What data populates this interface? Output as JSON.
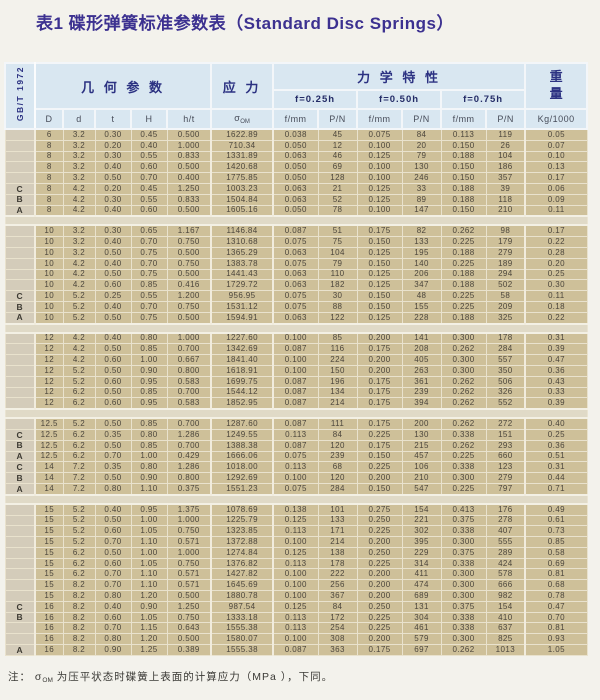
{
  "title": "表1 碟形弹簧标准参数表（Standard Disc Springs）",
  "standard_label": "GB/T 1972",
  "header": {
    "geometry": "几 何 参 数",
    "stress": "应 力",
    "mechanical": "力 学 特 性",
    "weight_top": "重",
    "weight_bottom": "量",
    "deflections": [
      "f=0.25h",
      "f=0.50h",
      "f=0.75h"
    ],
    "geo_cols": [
      "D",
      "d",
      "t",
      "H",
      "h/t"
    ],
    "sigma": "σ",
    "sigma_sub": "OM",
    "mech_cols": [
      "f/mm",
      "P/N",
      "f/mm",
      "P/N",
      "f/mm",
      "P/N"
    ],
    "weight_unit": "Kg/1000"
  },
  "table": {
    "blocks": [
      {
        "rows": [
          [
            "",
            "6",
            "3.2",
            "0.30",
            "0.45",
            "0.500",
            "1622.89",
            "0.038",
            "45",
            "0.075",
            "84",
            "0.113",
            "119",
            "0.05"
          ],
          [
            "",
            "8",
            "3.2",
            "0.20",
            "0.40",
            "1.000",
            "710.34",
            "0.050",
            "12",
            "0.100",
            "20",
            "0.150",
            "26",
            "0.07"
          ],
          [
            "",
            "8",
            "3.2",
            "0.30",
            "0.55",
            "0.833",
            "1331.89",
            "0.063",
            "46",
            "0.125",
            "79",
            "0.188",
            "104",
            "0.10"
          ],
          [
            "",
            "8",
            "3.2",
            "0.40",
            "0.60",
            "0.500",
            "1420.68",
            "0.050",
            "69",
            "0.100",
            "130",
            "0.150",
            "186",
            "0.13"
          ],
          [
            "",
            "8",
            "3.2",
            "0.50",
            "0.70",
            "0.400",
            "1775.85",
            "0.050",
            "128",
            "0.100",
            "246",
            "0.150",
            "357",
            "0.17"
          ],
          [
            "C",
            "8",
            "4.2",
            "0.20",
            "0.45",
            "1.250",
            "1003.23",
            "0.063",
            "21",
            "0.125",
            "33",
            "0.188",
            "39",
            "0.06"
          ],
          [
            "B",
            "8",
            "4.2",
            "0.30",
            "0.55",
            "0.833",
            "1504.84",
            "0.063",
            "52",
            "0.125",
            "89",
            "0.188",
            "118",
            "0.09"
          ],
          [
            "A",
            "8",
            "4.2",
            "0.40",
            "0.60",
            "0.500",
            "1605.16",
            "0.050",
            "78",
            "0.100",
            "147",
            "0.150",
            "210",
            "0.11"
          ]
        ]
      },
      {
        "rows": [
          [
            "",
            "10",
            "3.2",
            "0.30",
            "0.65",
            "1.167",
            "1146.84",
            "0.087",
            "51",
            "0.175",
            "82",
            "0.262",
            "98",
            "0.17"
          ],
          [
            "",
            "10",
            "3.2",
            "0.40",
            "0.70",
            "0.750",
            "1310.68",
            "0.075",
            "75",
            "0.150",
            "133",
            "0.225",
            "179",
            "0.22"
          ],
          [
            "",
            "10",
            "3.2",
            "0.50",
            "0.75",
            "0.500",
            "1365.29",
            "0.063",
            "104",
            "0.125",
            "195",
            "0.188",
            "279",
            "0.28"
          ],
          [
            "",
            "10",
            "4.2",
            "0.40",
            "0.70",
            "0.750",
            "1383.78",
            "0.075",
            "79",
            "0.150",
            "140",
            "0.225",
            "189",
            "0.20"
          ],
          [
            "",
            "10",
            "4.2",
            "0.50",
            "0.75",
            "0.500",
            "1441.43",
            "0.063",
            "110",
            "0.125",
            "206",
            "0.188",
            "294",
            "0.25"
          ],
          [
            "",
            "10",
            "4.2",
            "0.60",
            "0.85",
            "0.416",
            "1729.72",
            "0.063",
            "182",
            "0.125",
            "347",
            "0.188",
            "502",
            "0.30"
          ],
          [
            "C",
            "10",
            "5.2",
            "0.25",
            "0.55",
            "1.200",
            "956.95",
            "0.075",
            "30",
            "0.150",
            "48",
            "0.225",
            "58",
            "0.11"
          ],
          [
            "B",
            "10",
            "5.2",
            "0.40",
            "0.70",
            "0.750",
            "1531.12",
            "0.075",
            "88",
            "0.150",
            "155",
            "0.225",
            "209",
            "0.18"
          ],
          [
            "A",
            "10",
            "5.2",
            "0.50",
            "0.75",
            "0.500",
            "1594.91",
            "0.063",
            "122",
            "0.125",
            "228",
            "0.188",
            "325",
            "0.22"
          ]
        ]
      },
      {
        "rows": [
          [
            "",
            "12",
            "4.2",
            "0.40",
            "0.80",
            "1.000",
            "1227.60",
            "0.100",
            "85",
            "0.200",
            "141",
            "0.300",
            "178",
            "0.31"
          ],
          [
            "",
            "12",
            "4.2",
            "0.50",
            "0.85",
            "0.700",
            "1342.69",
            "0.087",
            "116",
            "0.175",
            "208",
            "0.262",
            "284",
            "0.39"
          ],
          [
            "",
            "12",
            "4.2",
            "0.60",
            "1.00",
            "0.667",
            "1841.40",
            "0.100",
            "224",
            "0.200",
            "405",
            "0.300",
            "557",
            "0.47"
          ],
          [
            "",
            "12",
            "5.2",
            "0.50",
            "0.90",
            "0.800",
            "1618.91",
            "0.100",
            "150",
            "0.200",
            "263",
            "0.300",
            "350",
            "0.36"
          ],
          [
            "",
            "12",
            "5.2",
            "0.60",
            "0.95",
            "0.583",
            "1699.75",
            "0.087",
            "196",
            "0.175",
            "361",
            "0.262",
            "506",
            "0.43"
          ],
          [
            "",
            "12",
            "6.2",
            "0.50",
            "0.85",
            "0.700",
            "1544.12",
            "0.087",
            "134",
            "0.175",
            "239",
            "0.262",
            "326",
            "0.33"
          ],
          [
            "",
            "12",
            "6.2",
            "0.60",
            "0.95",
            "0.583",
            "1852.95",
            "0.087",
            "214",
            "0.175",
            "394",
            "0.262",
            "552",
            "0.39"
          ]
        ]
      },
      {
        "rows": [
          [
            "",
            "12.5",
            "5.2",
            "0.50",
            "0.85",
            "0.700",
            "1287.60",
            "0.087",
            "111",
            "0.175",
            "200",
            "0.262",
            "272",
            "0.40"
          ],
          [
            "C",
            "12.5",
            "6.2",
            "0.35",
            "0.80",
            "1.286",
            "1249.55",
            "0.113",
            "84",
            "0.225",
            "130",
            "0.338",
            "151",
            "0.25"
          ],
          [
            "B",
            "12.5",
            "6.2",
            "0.50",
            "0.85",
            "0.700",
            "1388.38",
            "0.087",
            "120",
            "0.175",
            "215",
            "0.262",
            "293",
            "0.36"
          ],
          [
            "A",
            "12.5",
            "6.2",
            "0.70",
            "1.00",
            "0.429",
            "1666.06",
            "0.075",
            "239",
            "0.150",
            "457",
            "0.225",
            "660",
            "0.51"
          ],
          [
            "C",
            "14",
            "7.2",
            "0.35",
            "0.80",
            "1.286",
            "1018.00",
            "0.113",
            "68",
            "0.225",
            "106",
            "0.338",
            "123",
            "0.31"
          ],
          [
            "B",
            "14",
            "7.2",
            "0.50",
            "0.90",
            "0.800",
            "1292.69",
            "0.100",
            "120",
            "0.200",
            "210",
            "0.300",
            "279",
            "0.44"
          ],
          [
            "A",
            "14",
            "7.2",
            "0.80",
            "1.10",
            "0.375",
            "1551.23",
            "0.075",
            "284",
            "0.150",
            "547",
            "0.225",
            "797",
            "0.71"
          ]
        ]
      },
      {
        "rows": [
          [
            "",
            "15",
            "5.2",
            "0.40",
            "0.95",
            "1.375",
            "1078.69",
            "0.138",
            "101",
            "0.275",
            "154",
            "0.413",
            "176",
            "0.49"
          ],
          [
            "",
            "15",
            "5.2",
            "0.50",
            "1.00",
            "1.000",
            "1225.79",
            "0.125",
            "133",
            "0.250",
            "221",
            "0.375",
            "278",
            "0.61"
          ],
          [
            "",
            "15",
            "5.2",
            "0.60",
            "1.05",
            "0.750",
            "1323.85",
            "0.113",
            "171",
            "0.225",
            "302",
            "0.338",
            "407",
            "0.73"
          ],
          [
            "",
            "15",
            "5.2",
            "0.70",
            "1.10",
            "0.571",
            "1372.88",
            "0.100",
            "214",
            "0.200",
            "395",
            "0.300",
            "555",
            "0.85"
          ],
          [
            "",
            "15",
            "6.2",
            "0.50",
            "1.00",
            "1.000",
            "1274.84",
            "0.125",
            "138",
            "0.250",
            "229",
            "0.375",
            "289",
            "0.58"
          ],
          [
            "",
            "15",
            "6.2",
            "0.60",
            "1.05",
            "0.750",
            "1376.82",
            "0.113",
            "178",
            "0.225",
            "314",
            "0.338",
            "424",
            "0.69"
          ],
          [
            "",
            "15",
            "6.2",
            "0.70",
            "1.10",
            "0.571",
            "1427.82",
            "0.100",
            "222",
            "0.200",
            "411",
            "0.300",
            "578",
            "0.81"
          ],
          [
            "",
            "15",
            "8.2",
            "0.70",
            "1.10",
            "0.571",
            "1645.69",
            "0.100",
            "256",
            "0.200",
            "474",
            "0.300",
            "666",
            "0.68"
          ],
          [
            "",
            "15",
            "8.2",
            "0.80",
            "1.20",
            "0.500",
            "1880.78",
            "0.100",
            "367",
            "0.200",
            "689",
            "0.300",
            "982",
            "0.78"
          ],
          [
            "C",
            "16",
            "8.2",
            "0.40",
            "0.90",
            "1.250",
            "987.54",
            "0.125",
            "84",
            "0.250",
            "131",
            "0.375",
            "154",
            "0.47"
          ],
          [
            "B",
            "16",
            "8.2",
            "0.60",
            "1.05",
            "0.750",
            "1333.18",
            "0.113",
            "172",
            "0.225",
            "304",
            "0.338",
            "410",
            "0.70"
          ],
          [
            "",
            "16",
            "8.2",
            "0.70",
            "1.15",
            "0.643",
            "1555.38",
            "0.113",
            "254",
            "0.225",
            "461",
            "0.338",
            "637",
            "0.81"
          ],
          [
            "",
            "16",
            "8.2",
            "0.80",
            "1.20",
            "0.500",
            "1580.07",
            "0.100",
            "308",
            "0.200",
            "579",
            "0.300",
            "825",
            "0.93"
          ],
          [
            "A",
            "16",
            "8.2",
            "0.90",
            "1.25",
            "0.389",
            "1555.38",
            "0.087",
            "363",
            "0.175",
            "697",
            "0.262",
            "1013",
            "1.05"
          ]
        ]
      }
    ]
  },
  "note": {
    "prefix": "注： ",
    "sigma": "σ",
    "sigma_sub": "OM",
    "text": " 为压平状态时碟簧上表面的计算应力（MPa  ），下同。"
  },
  "colors": {
    "title_text": "#3c3190",
    "header_bg": "#d9e7f1",
    "header_text": "#2c3282",
    "row_bg": "#cec099",
    "class_col_bg": "#d4ccba",
    "grid_line": "#e9e2cd",
    "page_bg": "#f3f2ec"
  }
}
